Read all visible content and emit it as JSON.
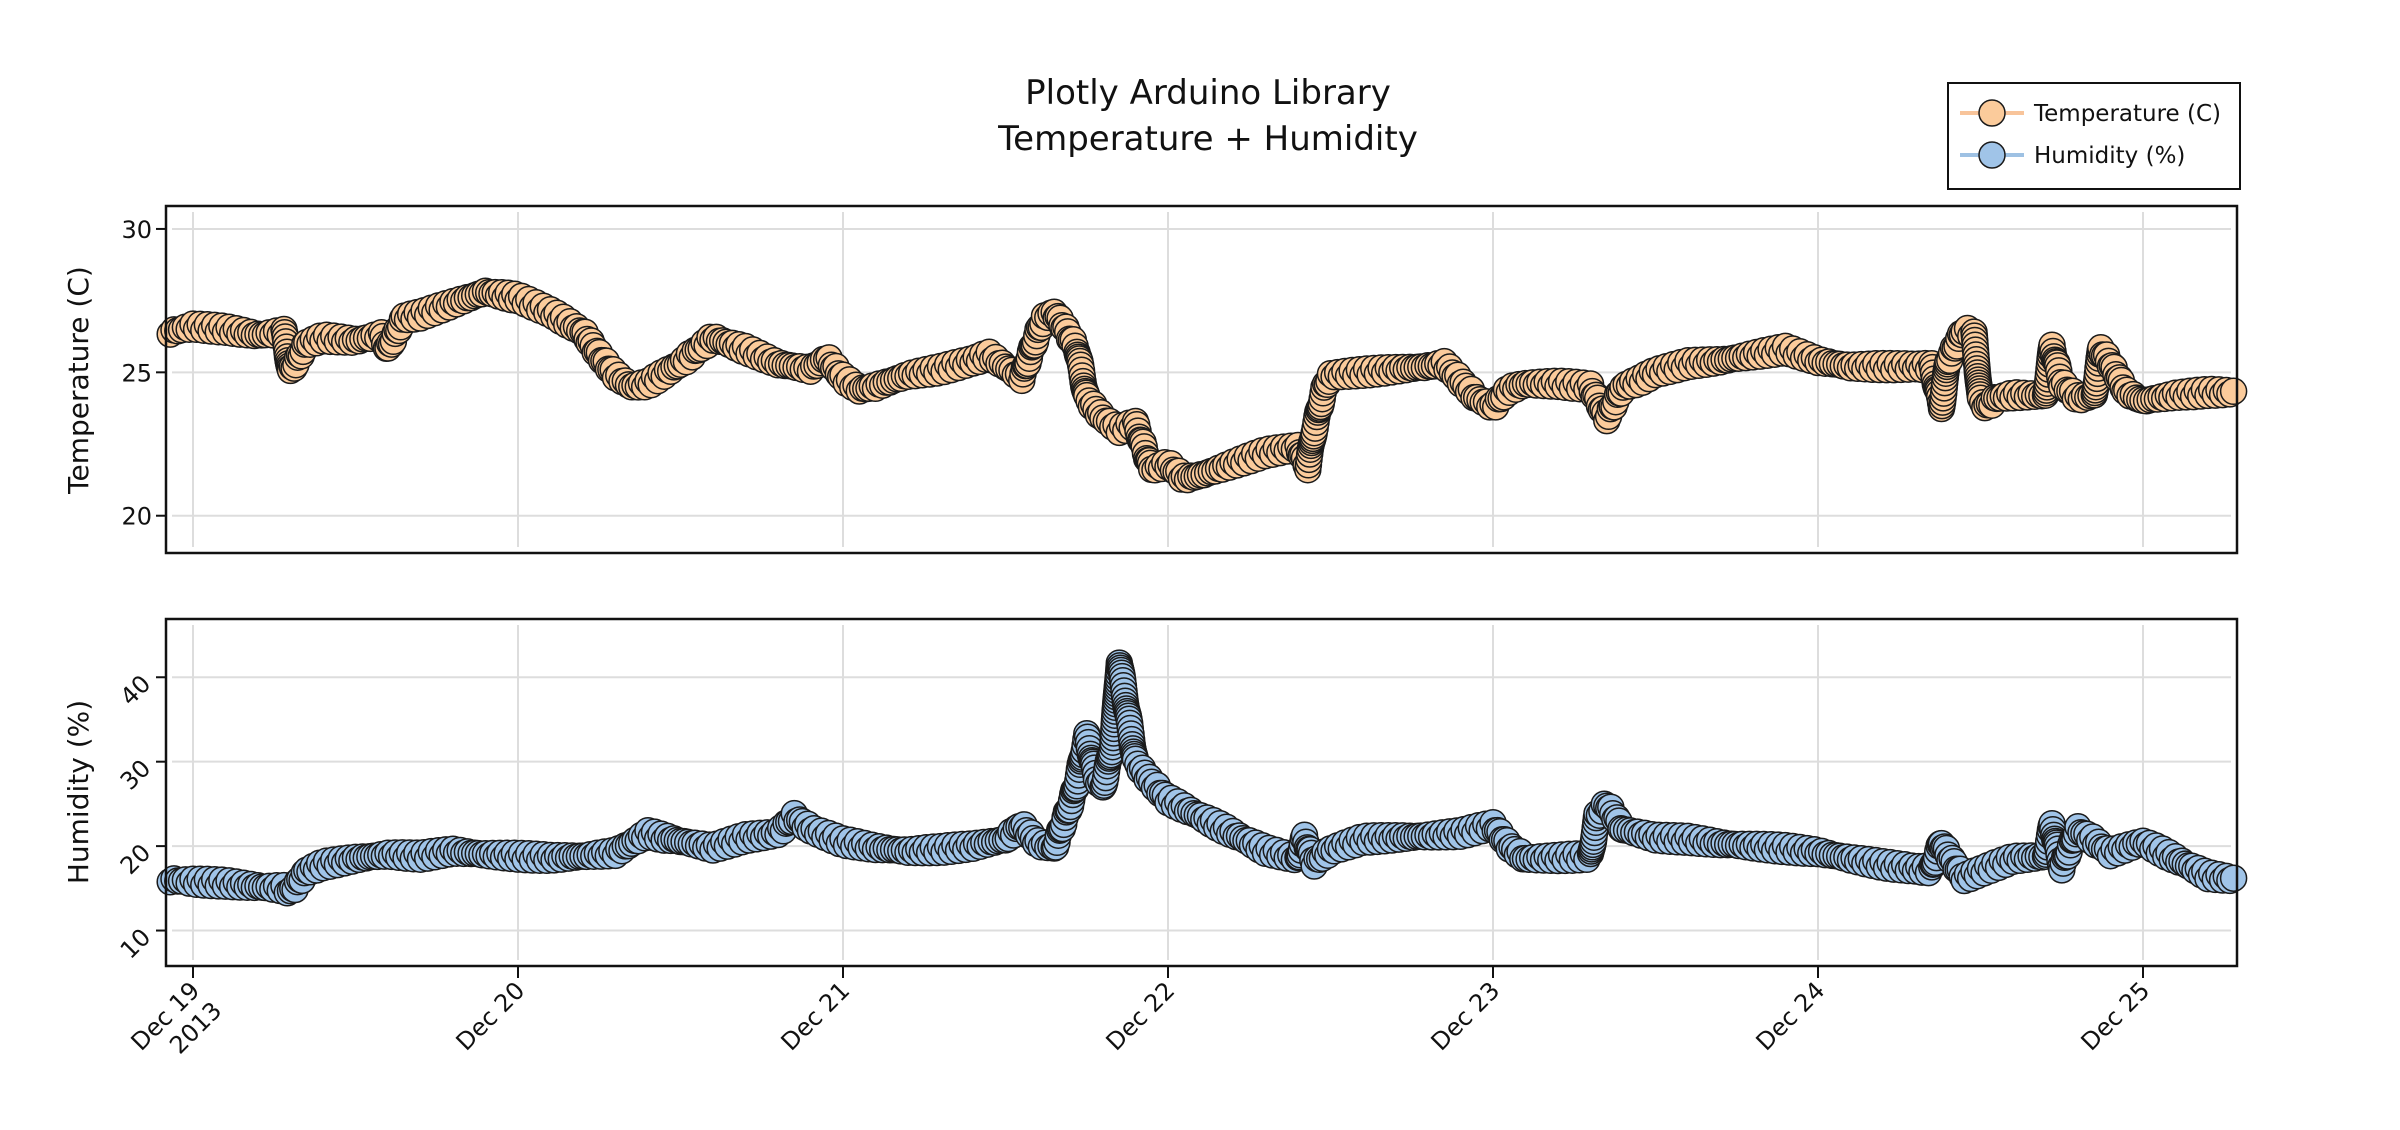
{
  "title": {
    "line1": "Plotly Arduino Library",
    "line2": "Temperature + Humidity"
  },
  "legend": {
    "items": [
      {
        "label": "Temperature (C)",
        "fill": "#FBCB9B",
        "line": "#F8C49A"
      },
      {
        "label": "Humidity (%)",
        "fill": "#A0C4E8",
        "line": "#9EC1E3"
      }
    ]
  },
  "colors": {
    "temperature_marker": "#FBCB9B",
    "humidity_marker": "#A0C4E8",
    "marker_outline": "#1a1a1a",
    "grid": "#dddddd",
    "frame": "#111111"
  },
  "x_axis": {
    "ticks": [
      {
        "day": 19,
        "label": "Dec 19",
        "sublabel": "2013"
      },
      {
        "day": 20,
        "label": "Dec 20"
      },
      {
        "day": 21,
        "label": "Dec 21"
      },
      {
        "day": 22,
        "label": "Dec 22"
      },
      {
        "day": 23,
        "label": "Dec 23"
      },
      {
        "day": 24,
        "label": "Dec 24"
      },
      {
        "day": 25,
        "label": "Dec 25"
      }
    ]
  },
  "chart_data": [
    {
      "type": "scatter",
      "mode": "lines+markers",
      "title": "Plotly Arduino Library Temperature + Humidity",
      "xlabel": "",
      "ylabel": "Temperature (C)",
      "xlim": [
        "2013-12-18 22:20",
        "2013-12-25 07:00"
      ],
      "ylim": [
        18.7,
        30.8
      ],
      "yticks": [
        20,
        25,
        30
      ],
      "grid": true,
      "legend_position": "top-right",
      "series": [
        {
          "name": "Temperature (C)",
          "x_day": [
            18.93,
            19.0,
            19.1,
            19.2,
            19.28,
            19.3,
            19.35,
            19.4,
            19.5,
            19.58,
            19.6,
            19.65,
            19.7,
            19.8,
            19.9,
            19.95,
            20.0,
            20.1,
            20.2,
            20.25,
            20.3,
            20.35,
            20.4,
            20.5,
            20.6,
            20.65,
            20.7,
            20.8,
            20.9,
            20.95,
            21.0,
            21.05,
            21.1,
            21.2,
            21.3,
            21.4,
            21.45,
            21.5,
            21.55,
            21.6,
            21.62,
            21.65,
            21.68,
            21.72,
            21.75,
            21.8,
            21.85,
            21.9,
            21.95,
            22.0,
            22.05,
            22.1,
            22.2,
            22.3,
            22.4,
            22.43,
            22.45,
            22.48,
            22.5,
            22.6,
            22.7,
            22.8,
            22.85,
            22.9,
            22.95,
            23.0,
            23.05,
            23.1,
            23.2,
            23.3,
            23.35,
            23.4,
            23.45,
            23.5,
            23.6,
            23.7,
            23.8,
            23.9,
            24.0,
            24.1,
            24.2,
            24.3,
            24.35,
            24.38,
            24.4,
            24.45,
            24.48,
            24.5,
            24.52,
            24.55,
            24.6,
            24.7,
            24.72,
            24.75,
            24.8,
            24.85,
            24.87,
            24.9,
            24.95,
            25.0,
            25.1,
            25.2,
            25.29
          ],
          "values": [
            26.4,
            26.6,
            26.5,
            26.3,
            26.4,
            25.0,
            26.0,
            26.2,
            26.1,
            26.3,
            25.8,
            26.9,
            27.0,
            27.4,
            27.8,
            27.7,
            27.6,
            27.1,
            26.4,
            25.6,
            24.9,
            24.5,
            24.6,
            25.3,
            26.2,
            26.0,
            25.8,
            25.3,
            25.1,
            25.5,
            24.8,
            24.4,
            24.5,
            24.9,
            25.1,
            25.4,
            25.6,
            25.2,
            24.8,
            26.4,
            26.9,
            27.1,
            26.6,
            25.8,
            24.1,
            23.4,
            23.0,
            23.2,
            21.6,
            21.8,
            21.3,
            21.4,
            21.8,
            22.2,
            22.4,
            21.7,
            23.0,
            24.4,
            24.9,
            25.0,
            25.1,
            25.2,
            25.3,
            24.7,
            24.1,
            23.8,
            24.4,
            24.6,
            24.6,
            24.5,
            23.4,
            24.5,
            24.7,
            25.0,
            25.3,
            25.4,
            25.6,
            25.8,
            25.4,
            25.2,
            25.2,
            25.2,
            25.2,
            23.8,
            25.4,
            26.5,
            26.3,
            24.0,
            23.8,
            24.1,
            24.2,
            24.2,
            25.9,
            24.6,
            24.1,
            24.2,
            25.8,
            25.3,
            24.3,
            24.0,
            24.2,
            24.3,
            24.3
          ]
        }
      ]
    },
    {
      "type": "scatter",
      "mode": "lines+markers",
      "xlabel": "",
      "ylabel": "Humidity (%)",
      "xlim": [
        "2013-12-18 22:20",
        "2013-12-25 07:00"
      ],
      "ylim": [
        5.8,
        46.9
      ],
      "yticks": [
        10,
        20,
        30,
        40
      ],
      "grid": true,
      "series": [
        {
          "name": "Humidity (%)",
          "x_day": [
            18.93,
            19.0,
            19.1,
            19.2,
            19.28,
            19.3,
            19.35,
            19.4,
            19.5,
            19.6,
            19.7,
            19.8,
            19.9,
            20.0,
            20.1,
            20.2,
            20.3,
            20.4,
            20.45,
            20.5,
            20.6,
            20.7,
            20.8,
            20.85,
            20.9,
            21.0,
            21.1,
            21.2,
            21.3,
            21.4,
            21.5,
            21.55,
            21.6,
            21.65,
            21.7,
            21.72,
            21.75,
            21.78,
            21.8,
            21.83,
            21.85,
            21.87,
            21.9,
            21.95,
            22.0,
            22.1,
            22.2,
            22.3,
            22.4,
            22.42,
            22.45,
            22.5,
            22.6,
            22.7,
            22.8,
            22.9,
            23.0,
            23.05,
            23.1,
            23.2,
            23.3,
            23.32,
            23.35,
            23.4,
            23.5,
            23.6,
            23.7,
            23.8,
            23.9,
            24.0,
            24.1,
            24.2,
            24.3,
            24.35,
            24.38,
            24.4,
            24.45,
            24.5,
            24.6,
            24.7,
            24.72,
            24.75,
            24.8,
            24.9,
            25.0,
            25.1,
            25.2,
            25.29
          ],
          "values": [
            16.0,
            15.8,
            15.6,
            15.2,
            15.0,
            14.5,
            17.0,
            17.8,
            18.5,
            19.0,
            18.8,
            19.4,
            19.0,
            18.8,
            18.6,
            18.8,
            19.2,
            21.5,
            21.0,
            20.6,
            19.8,
            21.0,
            21.5,
            23.5,
            22.0,
            20.5,
            19.8,
            19.4,
            19.6,
            20.0,
            20.8,
            22.5,
            20.3,
            19.8,
            25.0,
            27.5,
            33.0,
            28.0,
            27.0,
            32.0,
            42.0,
            37.0,
            30.0,
            27.5,
            25.5,
            23.5,
            21.5,
            19.5,
            18.5,
            21.0,
            18.0,
            19.5,
            20.8,
            21.0,
            21.2,
            21.5,
            22.5,
            20.0,
            18.5,
            18.6,
            18.8,
            23.5,
            25.0,
            22.0,
            21.0,
            20.8,
            20.3,
            20.0,
            19.7,
            19.3,
            18.5,
            17.8,
            17.3,
            17.2,
            20.5,
            19.0,
            16.2,
            17.0,
            18.5,
            18.8,
            22.5,
            17.5,
            22.0,
            19.2,
            20.5,
            18.5,
            16.5,
            16.0
          ]
        }
      ]
    }
  ]
}
